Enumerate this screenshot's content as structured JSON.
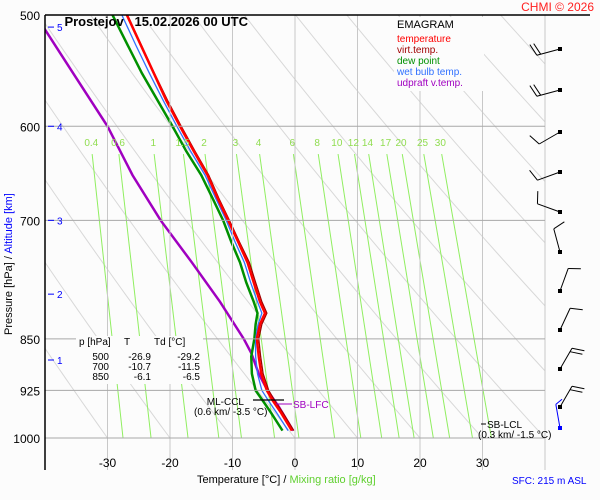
{
  "header": {
    "station": "Prostejov",
    "datetime": "15.02.2026 00 UTC",
    "copyright": "CHMI © 2026"
  },
  "legend": {
    "title": "EMAGRAM",
    "items": [
      {
        "label": "temperature",
        "color": "#ff0000"
      },
      {
        "label": "virt.temp.",
        "color": "#a00000"
      },
      {
        "label": "dew point",
        "color": "#009000"
      },
      {
        "label": "wet bulb temp.",
        "color": "#3070ff"
      },
      {
        "label": "udpraft v.temp.",
        "color": "#a000c0"
      }
    ]
  },
  "table": {
    "headers": [
      "p [hPa]",
      "T",
      "Td [°C]"
    ],
    "rows": [
      [
        "500",
        "-26.9",
        "-29.2"
      ],
      [
        "700",
        "-10.7",
        "-11.5"
      ],
      [
        "850",
        "-6.1",
        "-6.5"
      ]
    ]
  },
  "annotations": {
    "ml_ccl": "ML-CCL",
    "ml_ccl_value": "(0.6 km/ -3.5 °C)",
    "sb_lfc": "SB-LFC",
    "sb_lcl": "SB-LCL",
    "sb_lcl_value": "(0.3 km/ -1.5 °C)",
    "sfc": "SFC: 215 m ASL"
  },
  "chart_data": {
    "type": "line",
    "title": "Prostejov 15.02.2026 00 UTC",
    "xlabel": "Temperature [°C]",
    "xlabel2": "Mixing ratio [g/kg]",
    "ylabel": "Pressure [hPa]",
    "ylabel2": "Altitude [km]",
    "xlim": [
      -40,
      40
    ],
    "ylim": [
      1000,
      500
    ],
    "y_scale": "log",
    "x_ticks": [
      "-30",
      "-20",
      "-10",
      "0",
      "10",
      "20",
      "30"
    ],
    "y_ticks": [
      "500",
      "600",
      "700",
      "850",
      "925",
      "1000"
    ],
    "altitude_ticks": [
      "1",
      "2",
      "3",
      "4",
      "5"
    ],
    "altitude_tick_pressures": [
      880,
      790,
      700,
      600,
      510
    ],
    "mixing_ratio_labels": [
      "0.4",
      "0.6",
      "1",
      "1.5",
      "2",
      "3",
      "4",
      "6",
      "8",
      "10",
      "12",
      "14",
      "17",
      "20",
      "25",
      "30"
    ],
    "series": [
      {
        "name": "temperature",
        "color": "#ff0000",
        "points": [
          [
            988,
            -0.5
          ],
          [
            960,
            -2.2
          ],
          [
            940,
            -3.6
          ],
          [
            925,
            -4.5
          ],
          [
            900,
            -5.4
          ],
          [
            875,
            -5.8
          ],
          [
            850,
            -6.1
          ],
          [
            830,
            -5.6
          ],
          [
            815,
            -4.8
          ],
          [
            800,
            -5.6
          ],
          [
            775,
            -6.6
          ],
          [
            750,
            -7.6
          ],
          [
            725,
            -9.1
          ],
          [
            700,
            -10.7
          ],
          [
            675,
            -12.4
          ],
          [
            650,
            -14.0
          ],
          [
            625,
            -16.2
          ],
          [
            600,
            -18.4
          ],
          [
            575,
            -20.6
          ],
          [
            550,
            -22.6
          ],
          [
            525,
            -24.7
          ],
          [
            500,
            -26.9
          ]
        ]
      },
      {
        "name": "virt.temp.",
        "color": "#a00000",
        "points": [
          [
            988,
            -0.2
          ],
          [
            960,
            -1.9
          ],
          [
            940,
            -3.3
          ],
          [
            925,
            -4.2
          ],
          [
            900,
            -5.1
          ],
          [
            875,
            -5.5
          ],
          [
            850,
            -5.8
          ],
          [
            830,
            -5.3
          ],
          [
            815,
            -4.5
          ],
          [
            800,
            -5.3
          ],
          [
            775,
            -6.3
          ],
          [
            750,
            -7.3
          ],
          [
            725,
            -8.9
          ],
          [
            700,
            -10.5
          ],
          [
            675,
            -12.2
          ],
          [
            650,
            -13.8
          ],
          [
            625,
            -16.0
          ],
          [
            600,
            -18.2
          ],
          [
            575,
            -20.4
          ],
          [
            550,
            -22.5
          ],
          [
            525,
            -24.6
          ],
          [
            500,
            -26.8
          ]
        ]
      },
      {
        "name": "dew point",
        "color": "#009000",
        "points": [
          [
            988,
            -2.0
          ],
          [
            960,
            -3.8
          ],
          [
            940,
            -5.2
          ],
          [
            925,
            -6.3
          ],
          [
            900,
            -6.9
          ],
          [
            875,
            -7.0
          ],
          [
            850,
            -6.5
          ],
          [
            830,
            -6.3
          ],
          [
            815,
            -6.0
          ],
          [
            800,
            -6.6
          ],
          [
            775,
            -7.8
          ],
          [
            750,
            -8.8
          ],
          [
            725,
            -10.2
          ],
          [
            700,
            -11.5
          ],
          [
            675,
            -13.2
          ],
          [
            650,
            -15.0
          ],
          [
            625,
            -17.4
          ],
          [
            600,
            -19.6
          ],
          [
            575,
            -22.0
          ],
          [
            550,
            -24.5
          ],
          [
            525,
            -26.8
          ],
          [
            500,
            -29.2
          ]
        ]
      },
      {
        "name": "wet bulb temp.",
        "color": "#3070ff",
        "points": [
          [
            988,
            -1.1
          ],
          [
            960,
            -2.9
          ],
          [
            940,
            -4.3
          ],
          [
            925,
            -5.3
          ],
          [
            900,
            -6.0
          ],
          [
            875,
            -6.3
          ],
          [
            850,
            -6.3
          ],
          [
            830,
            -5.9
          ],
          [
            815,
            -5.3
          ],
          [
            800,
            -6.0
          ],
          [
            775,
            -7.1
          ],
          [
            750,
            -8.1
          ],
          [
            725,
            -9.6
          ],
          [
            700,
            -11.0
          ],
          [
            675,
            -12.7
          ],
          [
            650,
            -14.4
          ],
          [
            625,
            -16.7
          ],
          [
            600,
            -18.9
          ],
          [
            575,
            -21.1
          ],
          [
            550,
            -23.3
          ],
          [
            525,
            -25.5
          ],
          [
            500,
            -27.7
          ]
        ]
      },
      {
        "name": "udpraft v.temp.",
        "color": "#a000c0",
        "points": [
          [
            988,
            -0.3
          ],
          [
            950,
            -2.6
          ],
          [
            925,
            -4.4
          ],
          [
            900,
            -5.8
          ],
          [
            870,
            -7.0
          ],
          [
            850,
            -8.2
          ],
          [
            800,
            -12.0
          ],
          [
            750,
            -16.5
          ],
          [
            700,
            -21.5
          ],
          [
            650,
            -26.0
          ],
          [
            600,
            -30.0
          ],
          [
            550,
            -35.5
          ],
          [
            500,
            -41.5
          ]
        ]
      }
    ],
    "wind_barbs": [
      {
        "p": 500,
        "dir": 255,
        "kt": 20
      },
      {
        "p": 520,
        "dir": 255,
        "kt": 20
      },
      {
        "p": 560,
        "dir": 240,
        "kt": 10
      },
      {
        "p": 600,
        "dir": 250,
        "kt": 10
      },
      {
        "p": 640,
        "dir": 290,
        "kt": 10
      },
      {
        "p": 685,
        "dir": 345,
        "kt": 10
      },
      {
        "p": 735,
        "dir": 20,
        "kt": 10
      },
      {
        "p": 785,
        "dir": 25,
        "kt": 10
      },
      {
        "p": 840,
        "dir": 30,
        "kt": 20
      },
      {
        "p": 900,
        "dir": 30,
        "kt": 20
      },
      {
        "p": 935,
        "dir": 350,
        "kt": 5,
        "surface": true
      }
    ],
    "grid": true
  }
}
